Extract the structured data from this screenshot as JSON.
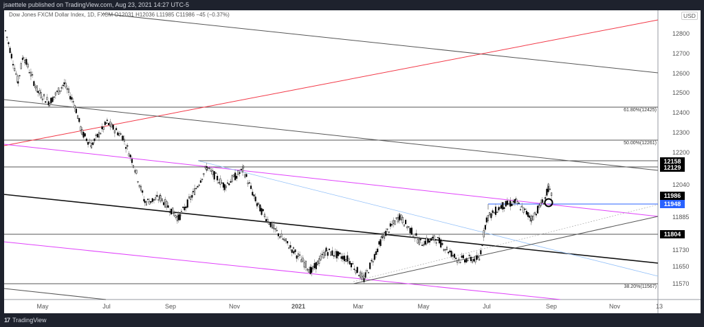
{
  "header": {
    "publisher_line": "jsaettele published on TradingView.com, Aug 23, 2021 14:27 UTC-5"
  },
  "legend": {
    "text": "Dow Jones FXCM Dollar Index, 1D, FXCM  O12031  H12036  L11985  C11986  −45 (−0.37%)"
  },
  "footer": {
    "logo_glyph": "17",
    "brand": "TradingView"
  },
  "price_axis": {
    "currency": "USD",
    "ticks": [
      "12800",
      "12700",
      "12600",
      "12500",
      "12400",
      "12300",
      "12200",
      "12040",
      "11885",
      "11730",
      "11650",
      "11570"
    ],
    "tags": [
      {
        "value": "12158",
        "bg": "#000000"
      },
      {
        "value": "12129",
        "bg": "#000000"
      },
      {
        "value": "11986",
        "bg": "#000000"
      },
      {
        "value": "11948",
        "bg": "#2962ff"
      },
      {
        "value": "11804",
        "bg": "#000000"
      }
    ]
  },
  "time_axis": {
    "labels": [
      "May",
      "Jul",
      "Sep",
      "Nov",
      "2021",
      "Mar",
      "May",
      "Jul",
      "Sep",
      "Nov",
      "13"
    ]
  },
  "fib_labels": {
    "f618": "61.80%(12425)",
    "f500": "50.00%(12261)",
    "f382": "38.20%(11567)"
  },
  "colors": {
    "red_trendline": "#f23645",
    "magenta_channel": "#e040fb",
    "blue_level": "#2962ff",
    "light_blue_trend": "#90bff9",
    "candle": "#000000",
    "frame_bg": "#1e222d"
  },
  "chart_data": {
    "type": "candlestick",
    "title": "Dow Jones FXCM Dollar Index, 1D, FXCM",
    "ohlc_last": {
      "open": 12031,
      "high": 12036,
      "low": 11985,
      "close": 11986,
      "change": -45,
      "change_pct": -0.37
    },
    "x_ticks": [
      "May",
      "Jul",
      "Sep",
      "Nov",
      "2021",
      "Mar",
      "May",
      "Jul",
      "Sep",
      "Nov",
      "13"
    ],
    "y_ticks": [
      12800,
      12700,
      12600,
      12500,
      12400,
      12300,
      12200,
      12040,
      11885,
      11730,
      11650,
      11570
    ],
    "ylim": [
      11530,
      12900
    ],
    "approx_close_path": [
      {
        "t": "2020-03-20",
        "v": 12800
      },
      {
        "t": "2020-04-01",
        "v": 12550
      },
      {
        "t": "2020-04-06",
        "v": 12680
      },
      {
        "t": "2020-04-20",
        "v": 12500
      },
      {
        "t": "2020-05-01",
        "v": 12450
      },
      {
        "t": "2020-05-15",
        "v": 12540
      },
      {
        "t": "2020-05-25",
        "v": 12440
      },
      {
        "t": "2020-06-01",
        "v": 12300
      },
      {
        "t": "2020-06-10",
        "v": 12240
      },
      {
        "t": "2020-06-25",
        "v": 12350
      },
      {
        "t": "2020-07-10",
        "v": 12280
      },
      {
        "t": "2020-07-20",
        "v": 12150
      },
      {
        "t": "2020-07-31",
        "v": 11960
      },
      {
        "t": "2020-08-15",
        "v": 11980
      },
      {
        "t": "2020-09-01",
        "v": 11880
      },
      {
        "t": "2020-09-15",
        "v": 12000
      },
      {
        "t": "2020-09-28",
        "v": 12130
      },
      {
        "t": "2020-10-15",
        "v": 12040
      },
      {
        "t": "2020-11-02",
        "v": 12120
      },
      {
        "t": "2020-11-15",
        "v": 11950
      },
      {
        "t": "2020-12-01",
        "v": 11830
      },
      {
        "t": "2020-12-20",
        "v": 11720
      },
      {
        "t": "2021-01-06",
        "v": 11620
      },
      {
        "t": "2021-01-20",
        "v": 11720
      },
      {
        "t": "2021-02-10",
        "v": 11680
      },
      {
        "t": "2021-02-25",
        "v": 11580
      },
      {
        "t": "2021-03-15",
        "v": 11790
      },
      {
        "t": "2021-03-31",
        "v": 11890
      },
      {
        "t": "2021-04-20",
        "v": 11760
      },
      {
        "t": "2021-05-05",
        "v": 11780
      },
      {
        "t": "2021-05-25",
        "v": 11680
      },
      {
        "t": "2021-06-15",
        "v": 11680
      },
      {
        "t": "2021-06-22",
        "v": 11880
      },
      {
        "t": "2021-07-06",
        "v": 11940
      },
      {
        "t": "2021-07-20",
        "v": 11960
      },
      {
        "t": "2021-08-04",
        "v": 11880
      },
      {
        "t": "2021-08-17",
        "v": 11980
      },
      {
        "t": "2021-08-20",
        "v": 12031
      },
      {
        "t": "2021-08-23",
        "v": 11986
      }
    ],
    "horizontal_levels": [
      12425,
      12261,
      12158,
      12129,
      11948,
      11804,
      11567
    ],
    "annotations": [
      "61.80%(12425)",
      "50.00%(12261)",
      "38.20%(11567)",
      "circle marker near 11948 at Aug 23 2021"
    ],
    "grid": false
  }
}
